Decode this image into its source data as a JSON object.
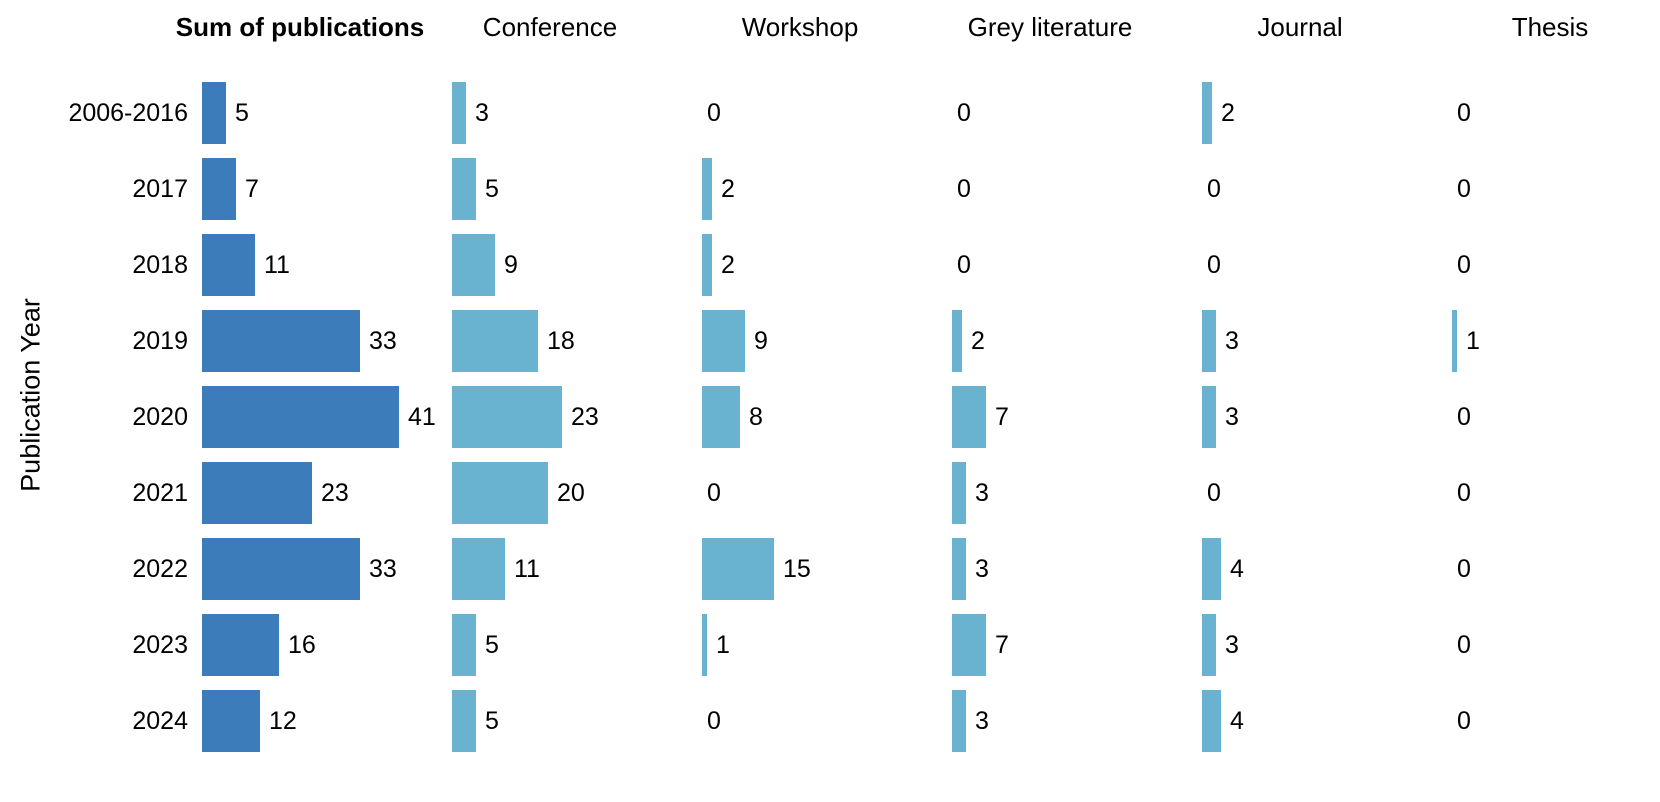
{
  "chart_data": {
    "type": "bar",
    "orientation": "horizontal",
    "title": "",
    "y_axis_label": "Publication Year",
    "categories": [
      "2006-2016",
      "2017",
      "2018",
      "2019",
      "2020",
      "2021",
      "2022",
      "2023",
      "2024"
    ],
    "series": [
      {
        "name": "Sum of publications",
        "values": [
          5,
          7,
          11,
          33,
          41,
          23,
          33,
          16,
          12
        ]
      },
      {
        "name": "Conference",
        "values": [
          3,
          5,
          9,
          18,
          23,
          20,
          11,
          5,
          5
        ]
      },
      {
        "name": "Workshop",
        "values": [
          0,
          2,
          2,
          9,
          8,
          0,
          15,
          1,
          0
        ]
      },
      {
        "name": "Grey literature",
        "values": [
          0,
          0,
          0,
          2,
          7,
          3,
          3,
          7,
          3
        ]
      },
      {
        "name": "Journal",
        "values": [
          2,
          0,
          0,
          3,
          3,
          0,
          4,
          3,
          4
        ]
      },
      {
        "name": "Thesis",
        "values": [
          0,
          0,
          0,
          1,
          0,
          0,
          0,
          0,
          0
        ]
      }
    ],
    "value_labels": true,
    "colors": {
      "sum_bar": "#3d7cba",
      "category_bar": "#69b3d0",
      "text": "#000000",
      "background": "#ffffff"
    },
    "layout_hints": {
      "legend": "none",
      "grid": false,
      "first_column_header_bold": true,
      "shared_value_scale": true,
      "value_range_units": [
        0,
        41
      ]
    }
  }
}
